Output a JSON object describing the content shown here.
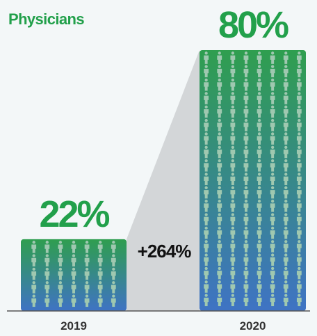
{
  "chart_data": {
    "type": "bar",
    "title": "Physicians",
    "categories": [
      "2019",
      "2020"
    ],
    "values": [
      22,
      80
    ],
    "value_labels": [
      "22%",
      "80%"
    ],
    "change_label": "+264%",
    "ylim": [
      0,
      100
    ],
    "grid": false,
    "legend": "none",
    "colors": {
      "title": "#22a04b",
      "value_label": "#22a04b",
      "change_label": "#111111",
      "tick_label": "#333333",
      "bar_top": "#2f9e4f",
      "bar_bottom": "#3f73c4",
      "person_icon": "#9fc8b0",
      "connector": "#d3d6d8",
      "baseline": "#555555"
    },
    "icon": "person-icon"
  }
}
